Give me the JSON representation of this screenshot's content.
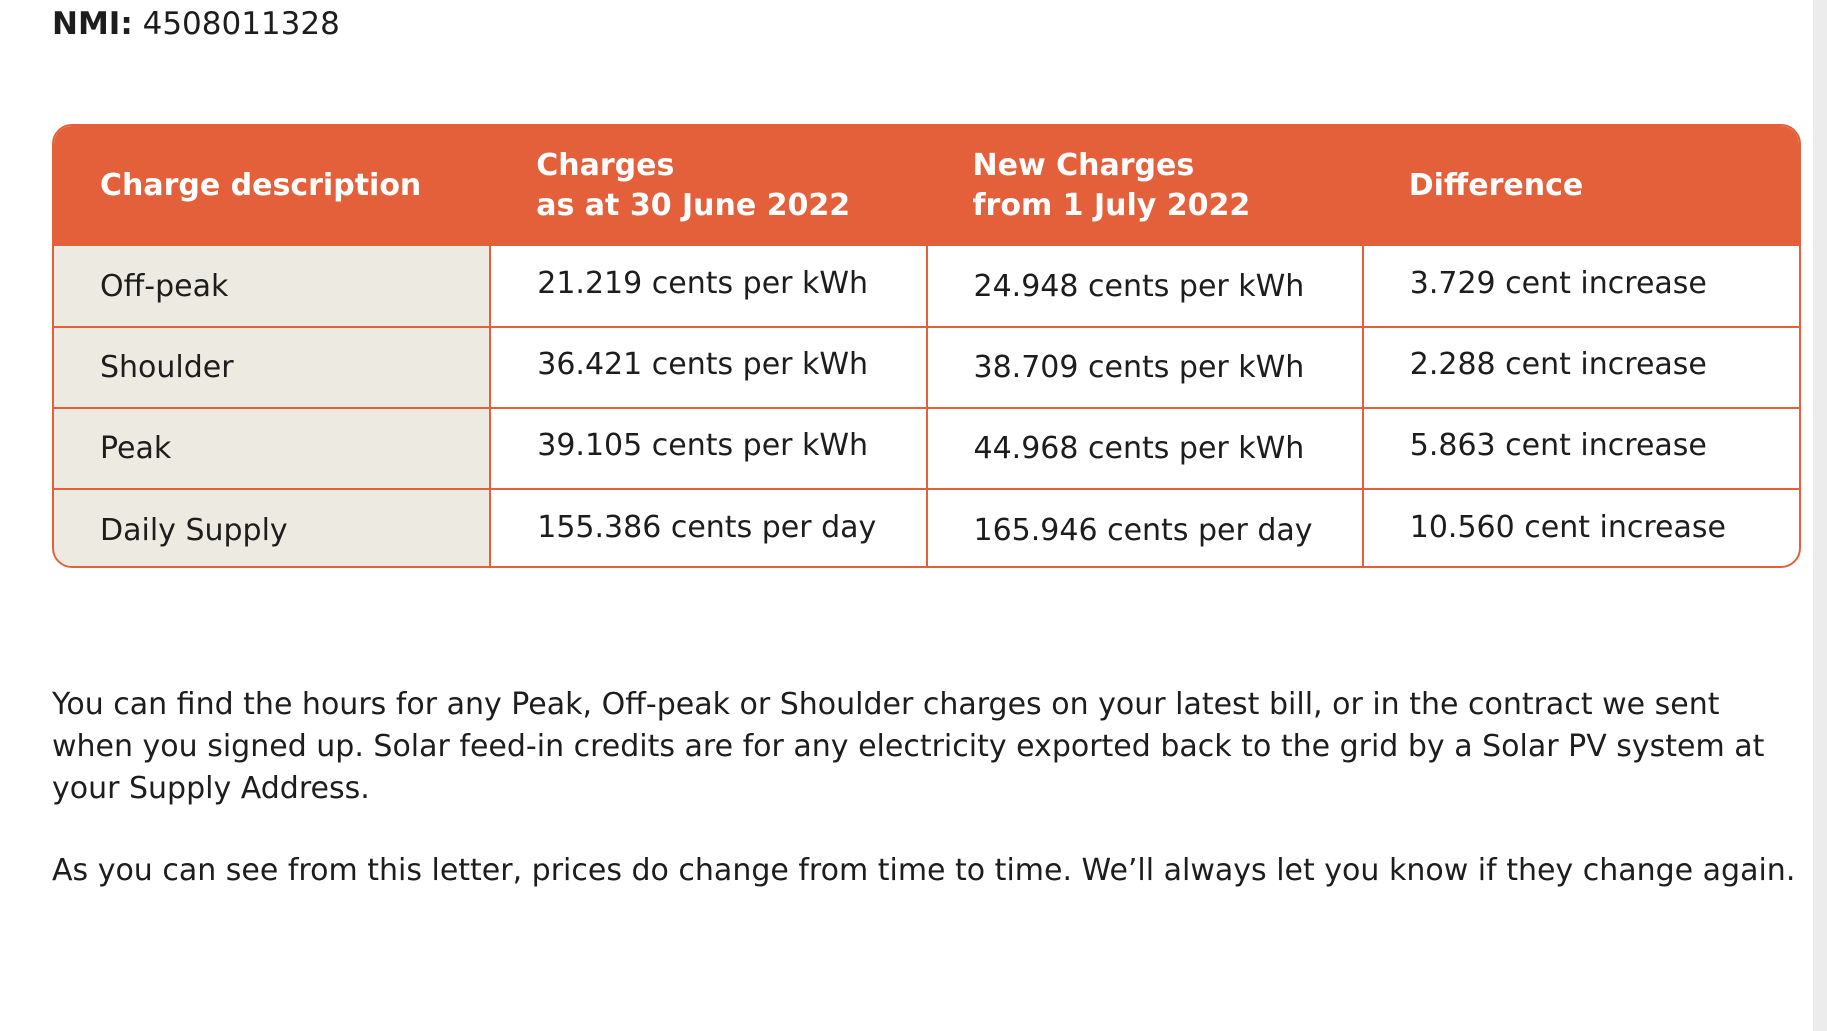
{
  "header": {
    "nmi_label": "NMI:",
    "nmi_value": "4508011328"
  },
  "table": {
    "columns": [
      {
        "line1": "Charge description",
        "line2": ""
      },
      {
        "line1": "Charges",
        "line2": "as at 30 June 2022"
      },
      {
        "line1": "New Charges",
        "line2": "from 1 July 2022"
      },
      {
        "line1": "Difference",
        "line2": ""
      }
    ],
    "rows": [
      {
        "description": "Off-peak",
        "current": "21.219 cents per kWh",
        "new": "24.948 cents per kWh",
        "difference": "3.729 cent increase"
      },
      {
        "description": "Shoulder",
        "current": "36.421 cents per kWh",
        "new": "38.709 cents per kWh",
        "difference": "2.288 cent increase"
      },
      {
        "description": "Peak",
        "current": "39.105 cents per kWh",
        "new": "44.968 cents per kWh",
        "difference": "5.863 cent increase"
      },
      {
        "description": "Daily Supply",
        "current": "155.386 cents per day",
        "new": "165.946 cents per day",
        "difference": "10.560 cent increase"
      }
    ]
  },
  "paragraphs": {
    "hours_info": "You can find the hours for any Peak, Off-peak or Shoulder charges on your latest bill, or in the contract we sent when you signed up. Solar feed-in credits are for any electricity exported back to the grid by a Solar PV system at your Supply Address.",
    "prices_change": "As you can see from this letter, prices do change from time to time. We’ll always let you know if they change again."
  },
  "colors": {
    "accent": "#e3603a",
    "first_column_bg": "#edebe1",
    "text": "#1d1d1d"
  }
}
